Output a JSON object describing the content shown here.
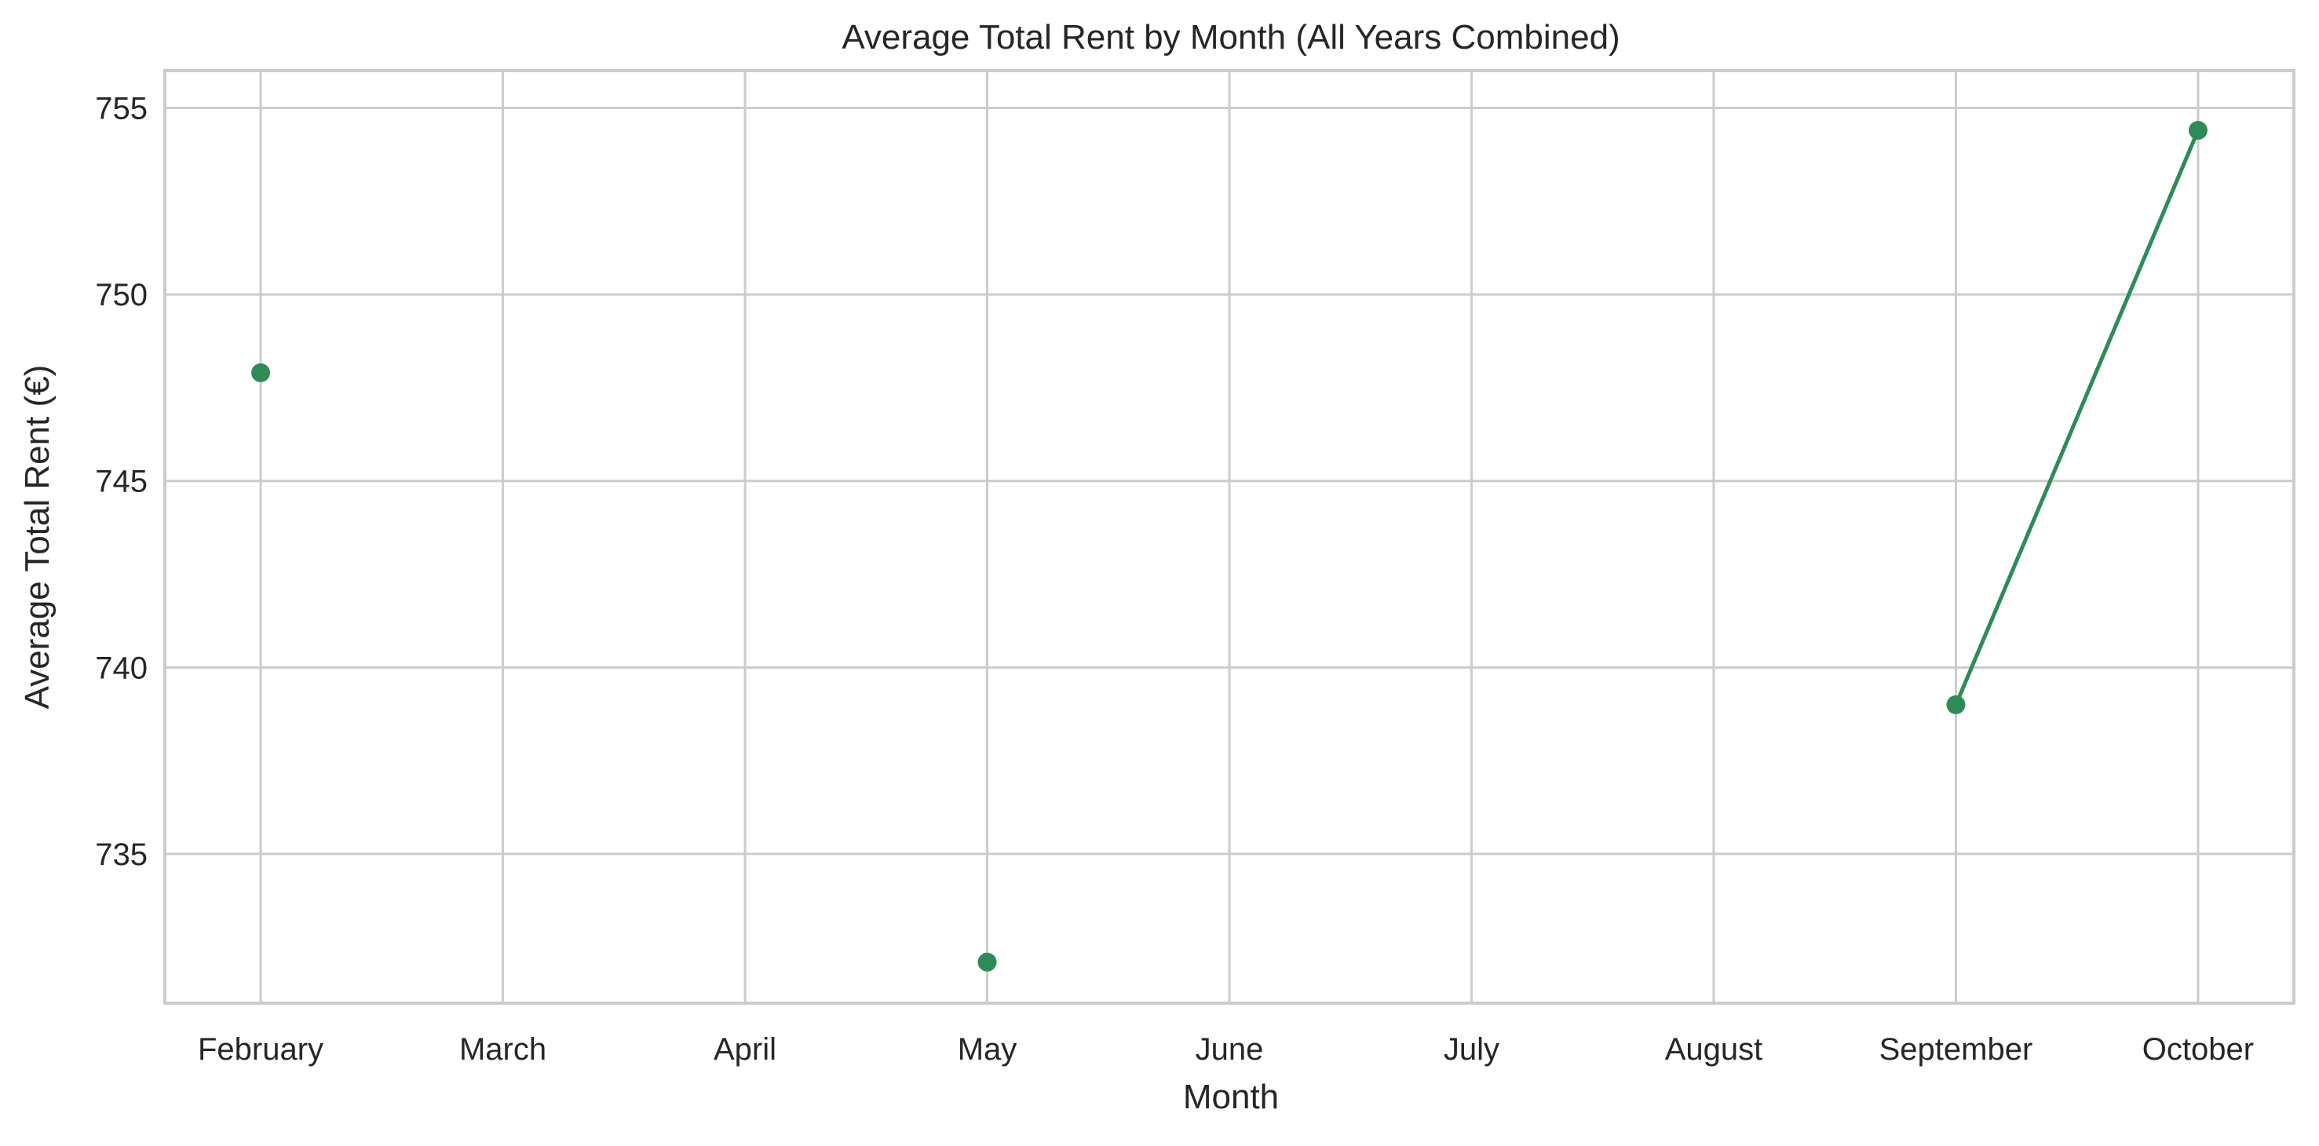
{
  "chart_data": {
    "type": "line",
    "title": "Average Total Rent by Month (All Years Combined)",
    "xlabel": "Month",
    "ylabel": "Average Total Rent (€)",
    "categories": [
      "February",
      "March",
      "April",
      "May",
      "June",
      "July",
      "August",
      "September",
      "October"
    ],
    "series": [
      {
        "values": [
          747.9,
          null,
          null,
          732.1,
          null,
          null,
          null,
          739.0,
          754.4
        ],
        "color": "#2e8b57",
        "marker": "circle"
      }
    ],
    "yticks": [
      735,
      740,
      745,
      750,
      755
    ],
    "ylim": [
      731.0,
      756.0
    ],
    "grid": true,
    "legend": "none"
  }
}
